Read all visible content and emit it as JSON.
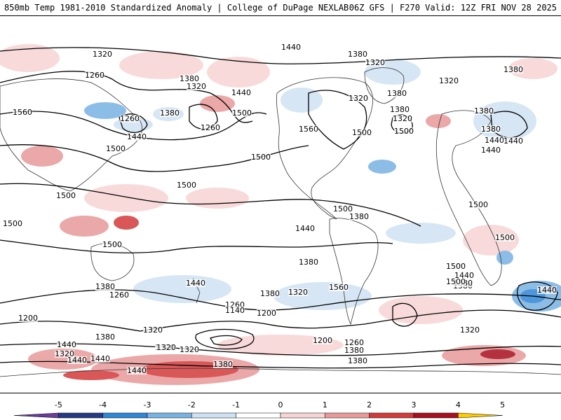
{
  "header": {
    "title_left": "850mb Temp 1981-2010 Standardized Anomaly | College of DuPage NEXLAB",
    "title_right": "06Z GFS | F270 Valid: 12Z FRI NOV 28 2025"
  },
  "colors": {
    "anomaly": [
      "#6a3d9a",
      "#253a82",
      "#2e86d4",
      "#78b2e3",
      "#cfe2f3",
      "#ffffff",
      "#f7d4d4",
      "#e89a9a",
      "#d33a3a",
      "#a80f1f",
      "#ffcc00"
    ]
  },
  "contour_labels": [
    {
      "text": "1440"
    },
    {
      "text": "1320"
    },
    {
      "text": "1380"
    },
    {
      "text": "1260"
    },
    {
      "text": "1320"
    },
    {
      "text": "1380"
    },
    {
      "text": "1320"
    },
    {
      "text": "1380"
    },
    {
      "text": "1440"
    },
    {
      "text": "1260"
    },
    {
      "text": "1380"
    },
    {
      "text": "1260"
    },
    {
      "text": "1500"
    },
    {
      "text": "1560"
    },
    {
      "text": "1440"
    },
    {
      "text": "1500"
    },
    {
      "text": "1560"
    },
    {
      "text": "1500"
    },
    {
      "text": "1500"
    },
    {
      "text": "1500"
    },
    {
      "text": "1500"
    },
    {
      "text": "1500"
    },
    {
      "text": "1500"
    },
    {
      "text": "1500"
    },
    {
      "text": "1440"
    },
    {
      "text": "1380"
    },
    {
      "text": "1320"
    },
    {
      "text": "1380"
    },
    {
      "text": "1320"
    },
    {
      "text": "1380"
    },
    {
      "text": "1320"
    },
    {
      "text": "1380"
    },
    {
      "text": "1380"
    },
    {
      "text": "1440"
    },
    {
      "text": "1440"
    },
    {
      "text": "1500"
    },
    {
      "text": "1440"
    },
    {
      "text": "1500"
    },
    {
      "text": "1380"
    },
    {
      "text": "1500"
    },
    {
      "text": "1560"
    },
    {
      "text": "1440"
    },
    {
      "text": "1380"
    },
    {
      "text": "1260"
    },
    {
      "text": "1200"
    },
    {
      "text": "1260"
    },
    {
      "text": "1140"
    },
    {
      "text": "1200"
    },
    {
      "text": "1380"
    },
    {
      "text": "1320"
    },
    {
      "text": "1200"
    },
    {
      "text": "1260"
    },
    {
      "text": "1320"
    },
    {
      "text": "1380"
    },
    {
      "text": "1440"
    },
    {
      "text": "1320"
    },
    {
      "text": "1380"
    },
    {
      "text": "1440"
    },
    {
      "text": "1320"
    },
    {
      "text": "1500"
    },
    {
      "text": "1440"
    },
    {
      "text": "1380"
    },
    {
      "text": "1320"
    },
    {
      "text": "1380"
    },
    {
      "text": "1320"
    },
    {
      "text": "1440"
    },
    {
      "text": "1320"
    },
    {
      "text": "1440"
    },
    {
      "text": "1440"
    },
    {
      "text": "1380"
    },
    {
      "text": "1380"
    },
    {
      "text": "1500"
    },
    {
      "text": "1500"
    }
  ],
  "colorbar": {
    "ticks": [
      "-5",
      "-4",
      "-3",
      "-2",
      "-1",
      "0",
      "1",
      "2",
      "3",
      "4",
      "5"
    ]
  }
}
